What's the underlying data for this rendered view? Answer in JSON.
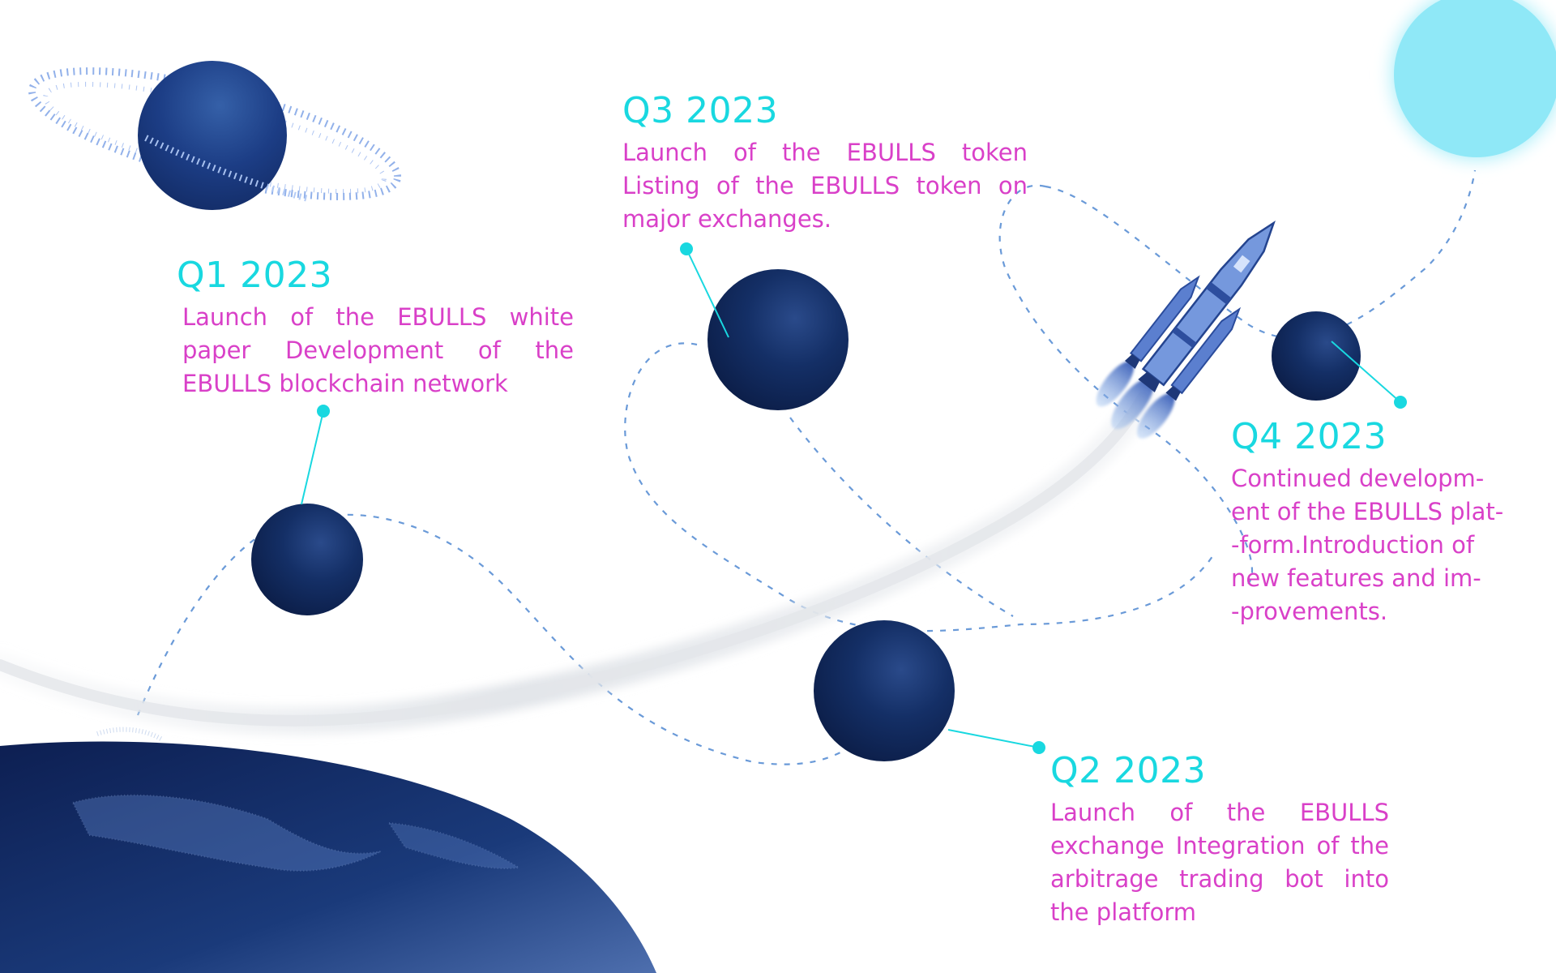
{
  "colors": {
    "quarter_title": "#19d8e0",
    "description": "#d940c8",
    "planet": "#0f2454",
    "orbit_path": "#6a9ad8",
    "connector": "#19d8e0",
    "sun": "#7de4f7"
  },
  "milestones": {
    "q1": {
      "title": "Q1 2023",
      "text": "Launch of the EBULLS white paper Development of the EBULLS blockchain network"
    },
    "q2": {
      "title": "Q2 2023",
      "text": "Launch of the EBULLS exchange Integration of the arbitrage trading bot into the platform"
    },
    "q3": {
      "title": "Q3 2023",
      "text": "Launch of the EBULLS token Listing of the EBULLS token on major exchanges."
    },
    "q4": {
      "title": "Q4 2023",
      "lines": [
        "Continued developm-",
        "ent of the EBULLS plat-",
        "-form.Introduction of",
        "new features and im-",
        "-provements."
      ]
    }
  },
  "icons": {
    "rocket": "rocket-icon",
    "ringed_planet": "ringed-planet-icon",
    "earth": "earth-icon",
    "sun": "sun-icon"
  }
}
